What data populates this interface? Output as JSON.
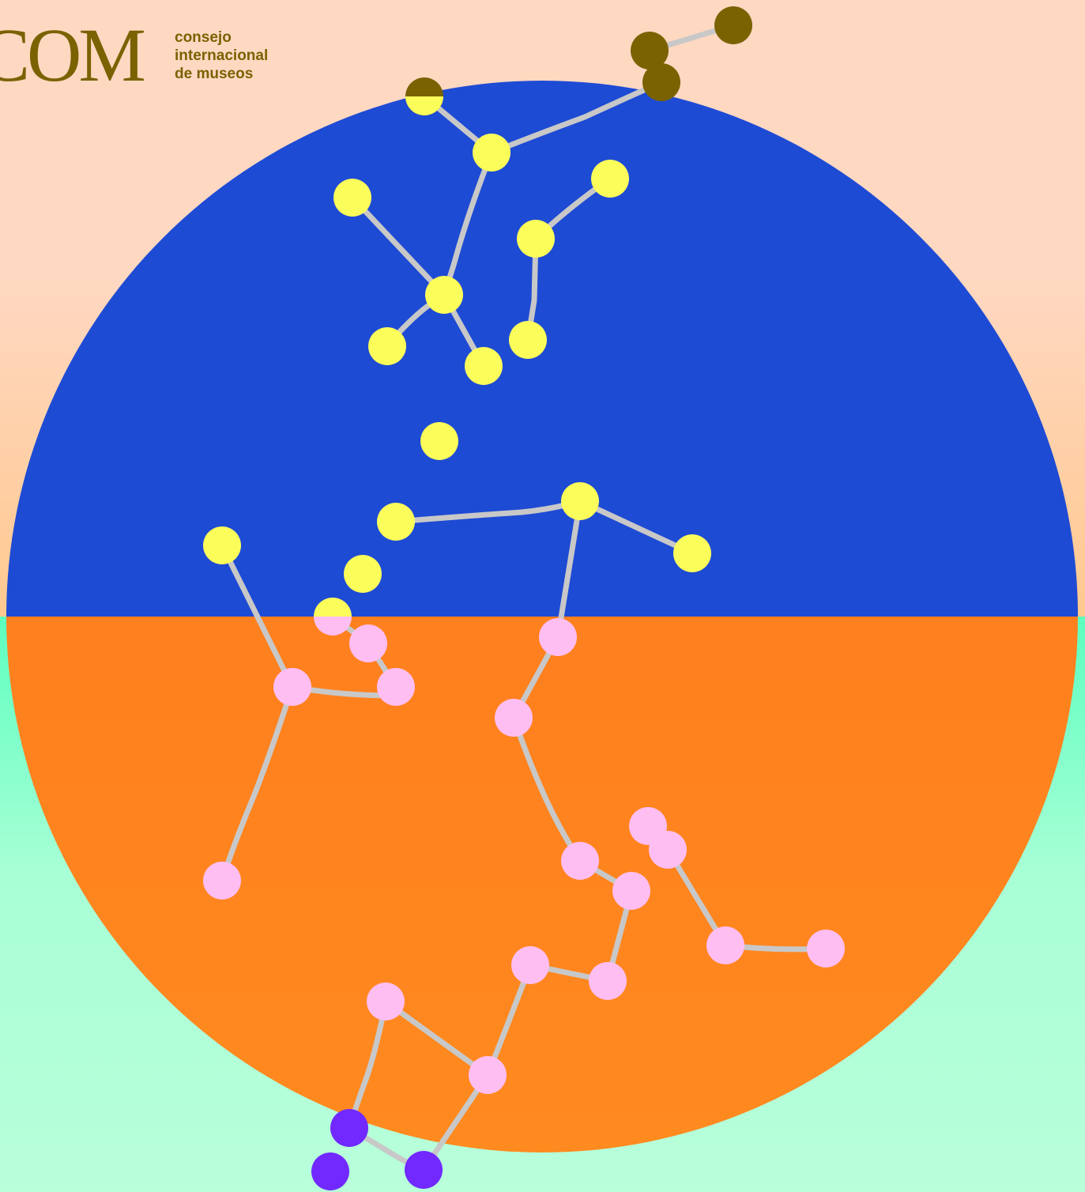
{
  "logo": {
    "mark": "COM",
    "lines": [
      "consejo",
      "internacional",
      "de museos"
    ]
  },
  "colors": {
    "sky_top": "#1e4bd4",
    "sky_bottom": "#8c3cff",
    "earth_top": "#ff641c",
    "earth_bottom": "#ff8a1f",
    "star_yellow": "#fbfd5a",
    "star_pink": "#ffbef2",
    "star_olive": "#7a6200",
    "star_violet": "#7129ff",
    "line": "#c8c8c8"
  }
}
